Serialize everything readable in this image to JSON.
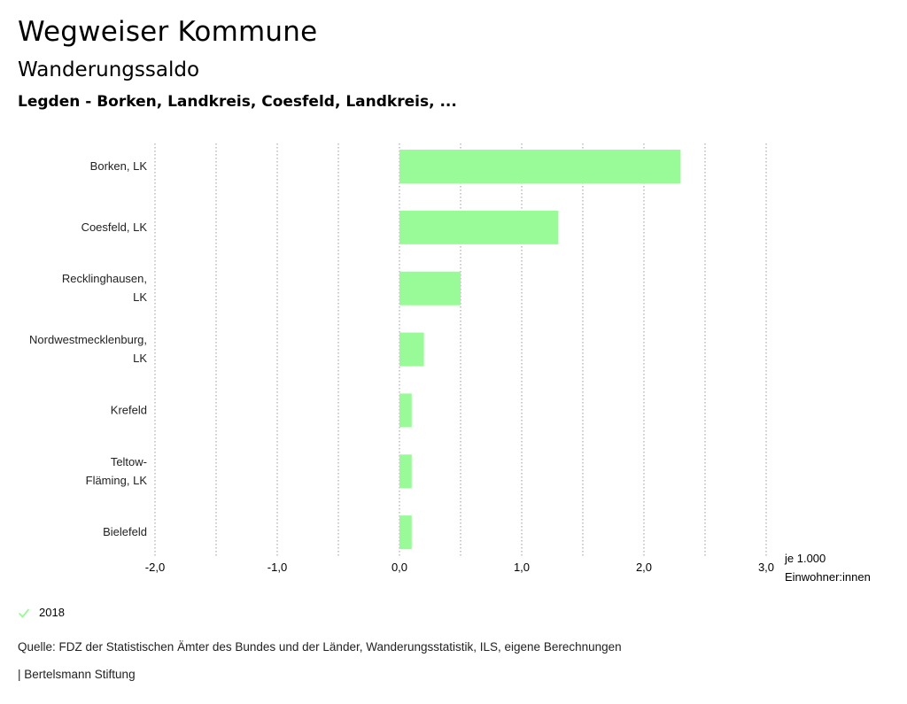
{
  "header": {
    "title": "Wegweiser Kommune",
    "subtitle": "Wanderungssaldo",
    "region": "Legden - Borken, Landkreis, Coesfeld, Landkreis, ..."
  },
  "chart_data": {
    "type": "bar",
    "orientation": "horizontal",
    "categories": [
      [
        "Borken, LK"
      ],
      [
        "Coesfeld, LK"
      ],
      [
        "Recklinghausen,",
        "LK"
      ],
      [
        "Nordwestmecklenburg,",
        "LK"
      ],
      [
        "Krefeld"
      ],
      [
        "Teltow-",
        "Fläming, LK"
      ],
      [
        "Bielefeld"
      ]
    ],
    "series": [
      {
        "name": "2018",
        "color": "#98fb98",
        "values": [
          2.3,
          1.3,
          0.5,
          0.2,
          0.1,
          0.1,
          0.1
        ]
      }
    ],
    "xlim": [
      -2.0,
      3.0
    ],
    "xticks": [
      -2.0,
      -1.0,
      0.0,
      1.0,
      2.0,
      3.0
    ],
    "xtick_labels": [
      "-2,0",
      "-1,0",
      "0,0",
      "1,0",
      "2,0",
      "3,0"
    ],
    "gridlines": [
      -2.0,
      -1.5,
      -1.0,
      -0.5,
      0.0,
      0.5,
      1.0,
      1.5,
      2.0,
      2.5,
      3.0
    ],
    "xlabel": [
      "je 1.000",
      "Einwohner:innen"
    ]
  },
  "legend": {
    "label": "2018",
    "color": "#98fb98"
  },
  "footer": {
    "source": "Quelle: FDZ der Statistischen Ämter des Bundes und der Länder, Wanderungsstatistik, ILS, eigene Berechnungen",
    "brand": "| Bertelsmann Stiftung"
  }
}
